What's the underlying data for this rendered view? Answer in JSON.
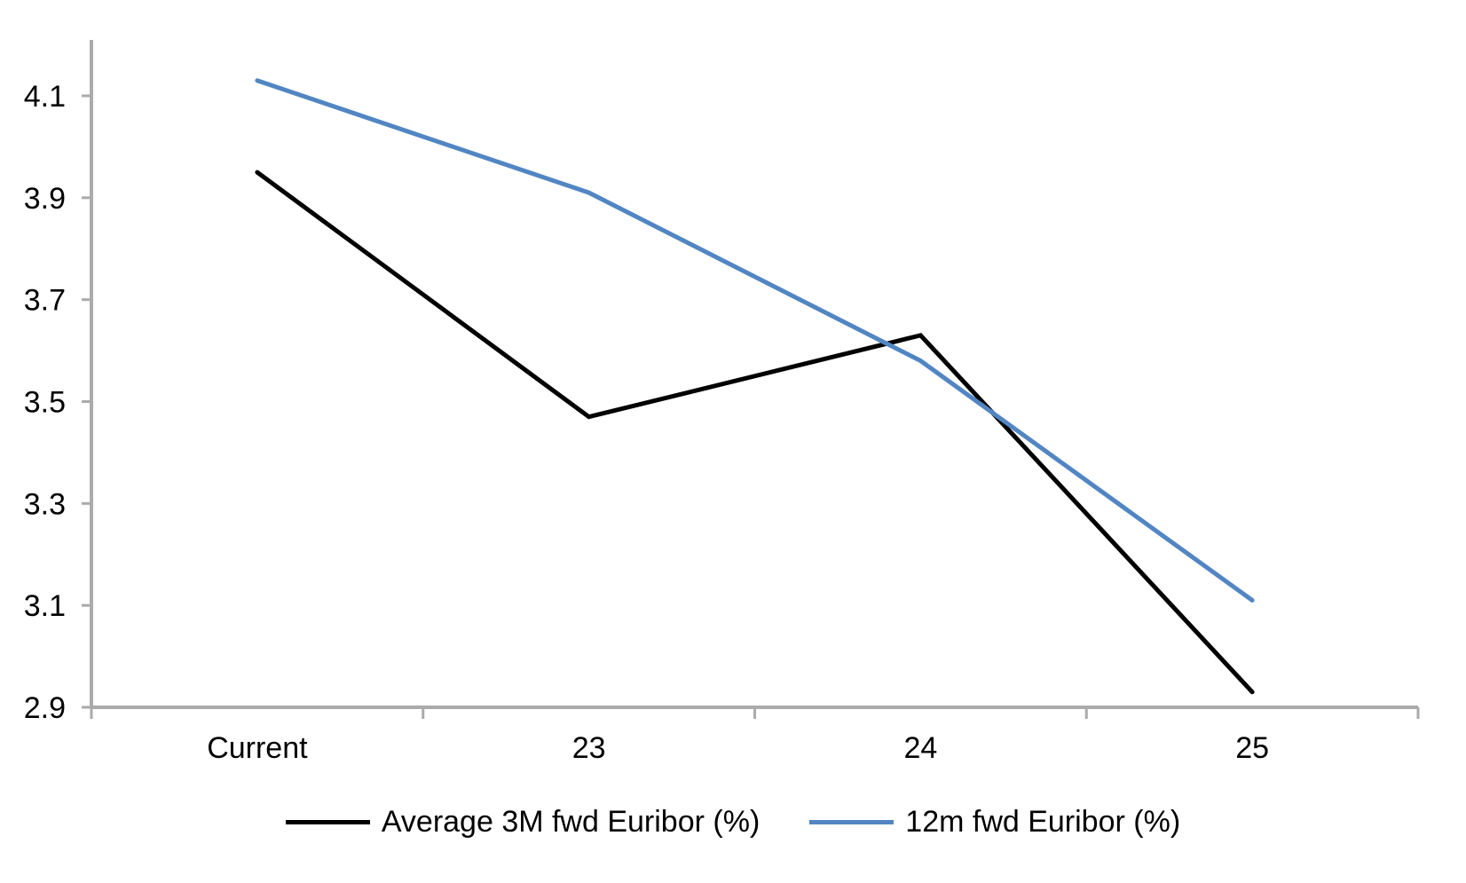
{
  "chart_data": {
    "type": "line",
    "title": "",
    "xlabel": "",
    "ylabel": "",
    "categories": [
      "Current",
      "23",
      "24",
      "25"
    ],
    "series": [
      {
        "name": "Average 3M fwd Euribor (%)",
        "color": "#000000",
        "values": [
          3.95,
          3.47,
          3.63,
          2.93
        ]
      },
      {
        "name": "12m fwd Euribor (%)",
        "color": "#5186C3",
        "values": [
          4.13,
          3.91,
          3.58,
          3.11
        ]
      }
    ],
    "ylim": [
      2.9,
      4.1
    ],
    "ytick_step": 0.2,
    "yticks": [
      "2.9",
      "3.1",
      "3.3",
      "3.5",
      "3.7",
      "3.9",
      "4.1"
    ],
    "grid": false,
    "legend_position": "bottom",
    "axis_color": "#ABABAB",
    "line_width": 5,
    "tick_label_color": "#000000"
  }
}
